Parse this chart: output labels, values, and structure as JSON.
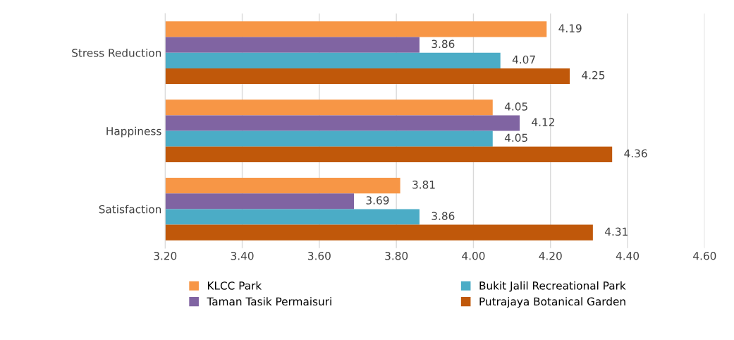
{
  "chart_data": {
    "type": "bar",
    "orientation": "horizontal",
    "categories": [
      "Stress Reduction",
      "Happiness",
      "Satisfaction"
    ],
    "series": [
      {
        "name": "KLCC Park",
        "color": "#f79646",
        "values": [
          4.19,
          4.05,
          3.81
        ]
      },
      {
        "name": "Taman Tasik Permaisuri",
        "color": "#8064a2",
        "values": [
          3.86,
          4.12,
          3.69
        ]
      },
      {
        "name": "Bukit Jalil Recreational Park",
        "color": "#4bacc6",
        "values": [
          4.07,
          4.05,
          3.86
        ]
      },
      {
        "name": "Putrajaya Botanical Garden",
        "color": "#c0580a",
        "values": [
          4.25,
          4.36,
          4.31
        ]
      }
    ],
    "xlim": [
      3.2,
      4.6
    ],
    "xticks": [
      {
        "value": 3.2,
        "label": "3.20"
      },
      {
        "value": 3.4,
        "label": "3.40"
      },
      {
        "value": 3.6,
        "label": "3.60"
      },
      {
        "value": 3.8,
        "label": "3.80"
      },
      {
        "value": 4.0,
        "label": "4.00"
      },
      {
        "value": 4.2,
        "label": "4.20"
      },
      {
        "value": 4.4,
        "label": "4.40"
      },
      {
        "value": 4.6,
        "label": "4.60"
      }
    ],
    "grid": "x",
    "legend": "bottom",
    "data_labels": true
  }
}
